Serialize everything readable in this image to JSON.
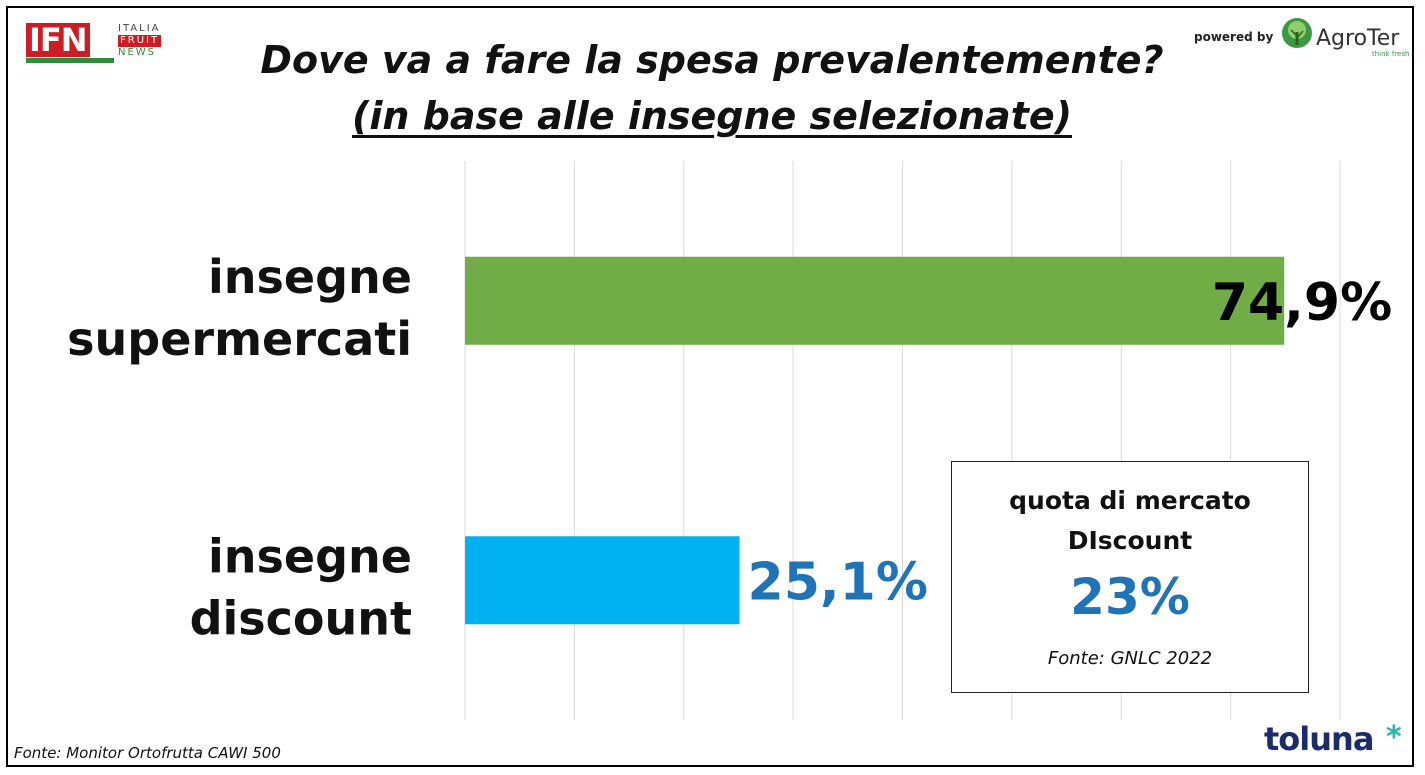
{
  "logos": {
    "ifn": {
      "mark": "IFN",
      "words": [
        "ITALIA",
        "FRUIT",
        "NEWS"
      ]
    },
    "powered_by": "powered by",
    "agroter": {
      "name": "AgroTer",
      "tagline": "think fresh",
      "icon": "tree-icon"
    },
    "toluna": {
      "name": "toluna",
      "icon": "asterisk-icon"
    }
  },
  "colors": {
    "supermercati": "#70ad47",
    "discount": "#00b0f0",
    "value_blue": "#1f73b7",
    "gridline": "#d9d9d9"
  },
  "chart_data": {
    "type": "bar",
    "orientation": "horizontal",
    "title": "Dove va a fare la spesa prevalentemente?",
    "subtitle": "(in base alle insegne selezionate)",
    "categories": [
      {
        "lines": [
          "insegne",
          "supermercati"
        ],
        "value": 74.9,
        "label": "74,9%",
        "label_color": "#000000",
        "bar_color": "#70ad47"
      },
      {
        "lines": [
          "insegne",
          "discount"
        ],
        "value": 25.1,
        "label": "25,1%",
        "label_color": "#1f73b7",
        "bar_color": "#00b0f0"
      }
    ],
    "xlim": [
      0,
      80
    ],
    "grid": true,
    "grid_step": 10,
    "xlabel": "",
    "ylabel": ""
  },
  "inset": {
    "line1": "quota di mercato",
    "line2": "DIscount",
    "value": "23%",
    "source": "Fonte: GNLC 2022"
  },
  "footer": {
    "source": "Fonte: Monitor Ortofrutta CAWI 500"
  }
}
